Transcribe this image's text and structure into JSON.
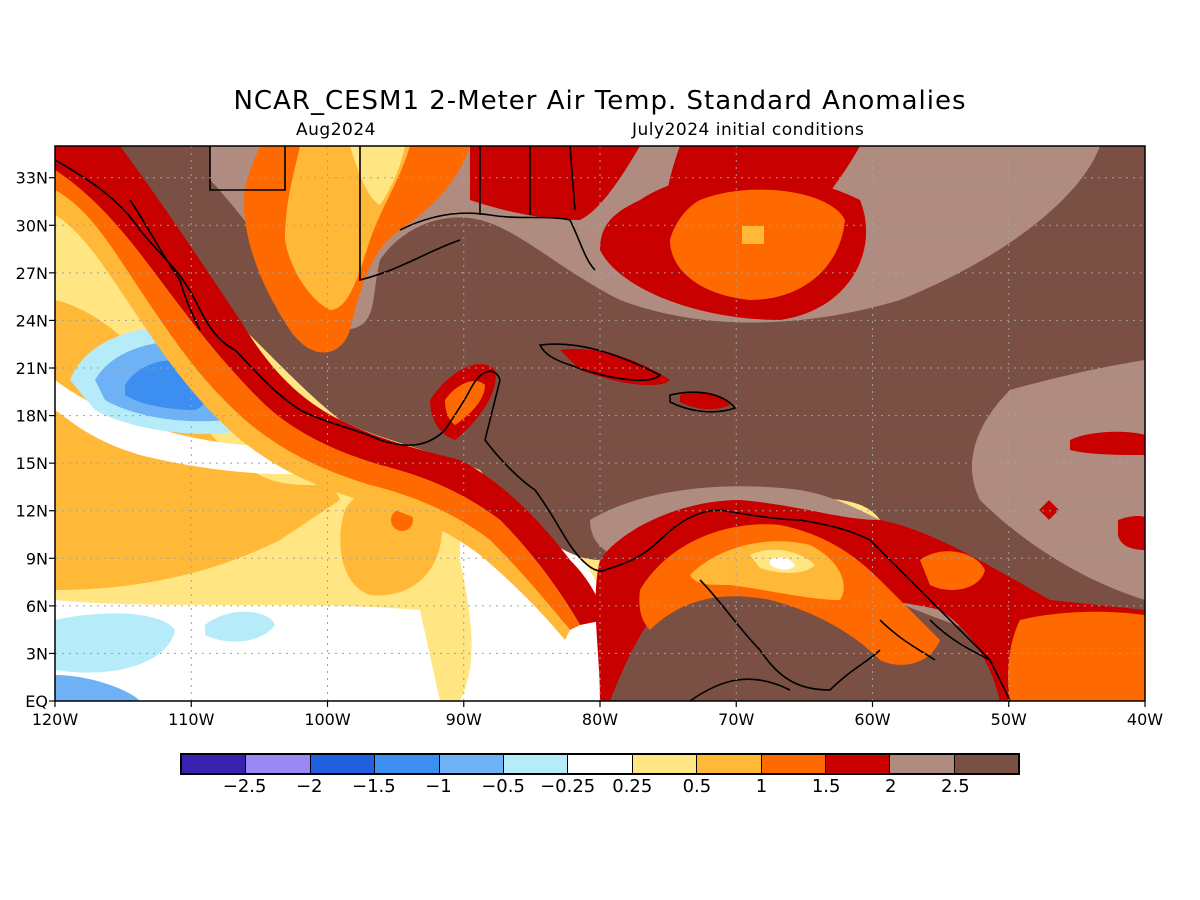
{
  "header": {
    "title": "NCAR_CESM1 2-Meter Air Temp. Standard Anomalies",
    "forecast_month": "Aug2024",
    "init_conditions": "July2024 initial conditions"
  },
  "map": {
    "lon_range": [
      -120,
      -40
    ],
    "lat_range": [
      0,
      35
    ],
    "lon_ticks": [
      "120W",
      "110W",
      "100W",
      "90W",
      "80W",
      "70W",
      "60W",
      "50W",
      "40W"
    ],
    "lat_ticks": [
      "EQ",
      "3N",
      "6N",
      "9N",
      "12N",
      "15N",
      "18N",
      "21N",
      "24N",
      "27N",
      "30N",
      "33N"
    ],
    "gridlines": "dotted"
  },
  "legend": {
    "colors": [
      "#3a22b0",
      "#9b88f5",
      "#1f5fe0",
      "#3c8ff0",
      "#6eb2f5",
      "#b6ecfa",
      "#ffffff",
      "#ffe682",
      "#ffb838",
      "#ff6a00",
      "#c80000",
      "#b08c80",
      "#7a5044"
    ],
    "labels": [
      "-2.5",
      "-2",
      "-1.5",
      "-1",
      "-0.5",
      "-0.25",
      "0.25",
      "0.5",
      "1",
      "1.5",
      "2",
      "2.5"
    ]
  }
}
